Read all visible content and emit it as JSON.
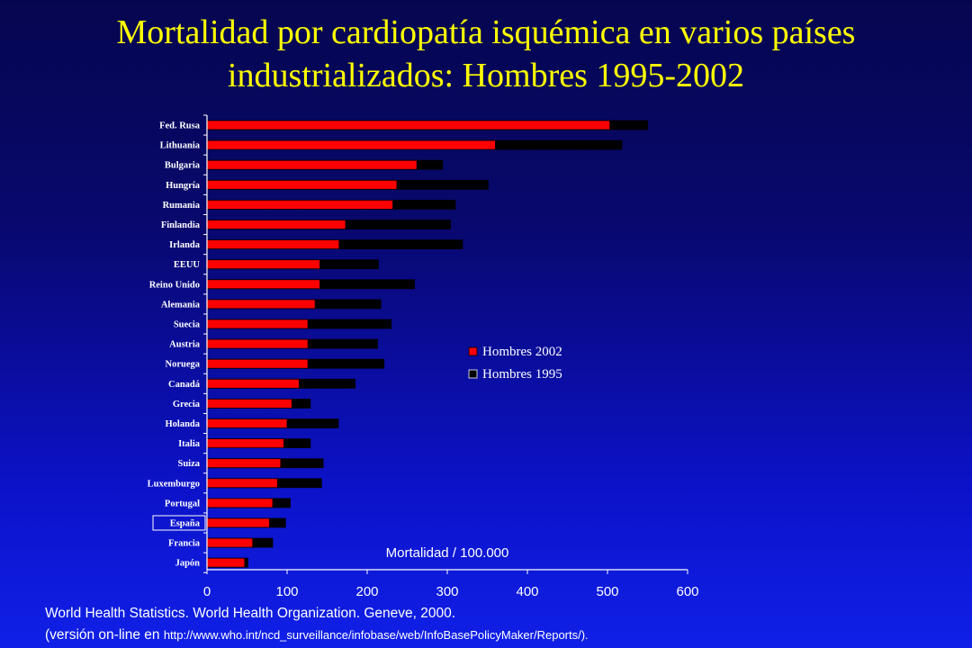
{
  "slide": {
    "title_line1": "Mortalidad por cardiopatía isquémica en varios países",
    "title_line2": "industrializados: Hombres 1995-2002",
    "source_line1": "World Health Statistics. World Health Organization. Geneve, 2000.",
    "source_line2_prefix": "(versión on-line en ",
    "source_url": "http://www.who.int/ncd_surveillance/infobase/web/InfoBasePolicyMaker/Reports/)."
  },
  "chart_data": {
    "type": "bar",
    "orientation": "horizontal",
    "title": "",
    "xlabel": "Mortalidad / 100.000",
    "ylabel": "",
    "xlim": [
      0,
      600
    ],
    "xticks": [
      0,
      100,
      200,
      300,
      400,
      500,
      600
    ],
    "grid": false,
    "legend_position": "right",
    "highlighted_category": "España",
    "categories": [
      "Fed. Rusa",
      "Lithuania",
      "Bulgaria",
      "Hungría",
      "Rumania",
      "Finlandia",
      "Irlanda",
      "EEUU",
      "Reino Unido",
      "Alemania",
      "Suecia",
      "Austria",
      "Noruega",
      "Canadá",
      "Grecia",
      "Holanda",
      "Italia",
      "Suiza",
      "Luxemburgo",
      "Portugal",
      "España",
      "Francia",
      "Japón"
    ],
    "series": [
      {
        "name": "Hombres 2002",
        "color": "#ff0000",
        "values": [
          503,
          360,
          262,
          237,
          232,
          173,
          165,
          141,
          141,
          135,
          126,
          126,
          126,
          115,
          106,
          100,
          96,
          92,
          88,
          82,
          78,
          57,
          47
        ]
      },
      {
        "name": "Hombres 1995",
        "color": "#000000",
        "values": [
          550,
          518,
          294,
          351,
          310,
          304,
          319,
          214,
          259,
          217,
          230,
          213,
          221,
          185,
          129,
          164,
          129,
          145,
          143,
          104,
          98,
          82,
          51
        ]
      }
    ]
  }
}
